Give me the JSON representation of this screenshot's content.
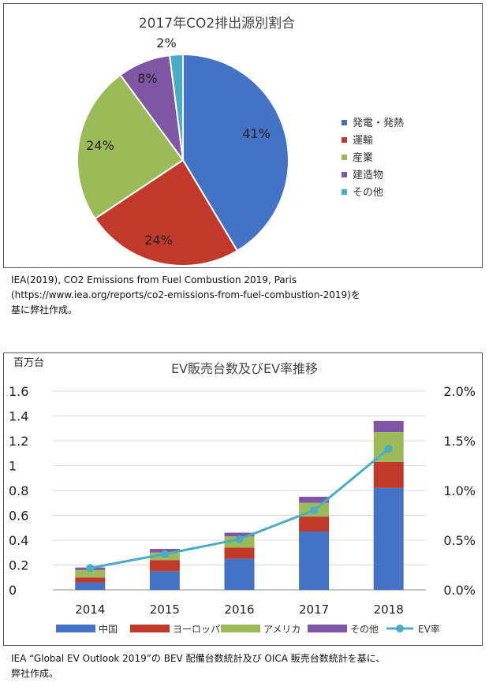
{
  "pie_caption": [
    "IEA(2019), CO2 Emissions from Fuel Combustion 2019, Paris",
    "(https://www.iea.org/reports/co2-emissions-from-fuel-combustion-2019)を",
    "基に弊社作成。"
  ],
  "bar_caption": [
    "IEA “Global EV Outlook 2019”の BEV 配備台数統計及び OICA 販売台数統計を基に、",
    "弊社作成。"
  ],
  "colors": {
    "blue": "#4472c4",
    "red": "#c0392b",
    "green": "#9bbb59",
    "purple": "#7f56a3",
    "teal": "#4bacc6"
  },
  "chart_data": [
    {
      "type": "pie",
      "title": "2017年CO2排出源別割合",
      "slices": [
        {
          "label": "発電・発熱",
          "value": 41,
          "display": "41%",
          "color": "#4472c4"
        },
        {
          "label": "運輸",
          "value": 24,
          "display": "24%",
          "color": "#c0392b"
        },
        {
          "label": "産業",
          "value": 24,
          "display": "24%",
          "color": "#9bbb59"
        },
        {
          "label": "建造物",
          "value": 8,
          "display": "8%",
          "color": "#7f56a3"
        },
        {
          "label": "その他",
          "value": 2,
          "display": "2%",
          "color": "#4bacc6"
        }
      ],
      "legend": "right"
    },
    {
      "type": "bar",
      "stacked": true,
      "title": "EV販売台数及びEV率推移",
      "ylabel": "百万台",
      "categories": [
        "2014",
        "2015",
        "2016",
        "2017",
        "2018"
      ],
      "ylim": [
        0,
        1.6
      ],
      "yticks": [
        "0",
        "0.2",
        "0.4",
        "0.6",
        "0.8",
        "1",
        "1.2",
        "1.4",
        "1.6"
      ],
      "y2lim": [
        0,
        2.0
      ],
      "y2ticks": [
        "0.0%",
        "0.5%",
        "1.0%",
        "1.5%",
        "2.0%"
      ],
      "series": [
        {
          "name": "中国",
          "color": "#4472c4",
          "values": [
            0.06,
            0.15,
            0.25,
            0.47,
            0.82
          ]
        },
        {
          "name": "ヨーロッパ",
          "color": "#c0392b",
          "values": [
            0.04,
            0.09,
            0.09,
            0.12,
            0.21
          ]
        },
        {
          "name": "アメリカ",
          "color": "#9bbb59",
          "values": [
            0.06,
            0.06,
            0.09,
            0.11,
            0.24
          ]
        },
        {
          "name": "その他",
          "color": "#7f56a3",
          "values": [
            0.02,
            0.03,
            0.03,
            0.05,
            0.09
          ]
        }
      ],
      "line": {
        "name": "EV率",
        "color": "#4bacc6",
        "axis": "right",
        "values": [
          0.22,
          0.36,
          0.51,
          0.8,
          1.42
        ]
      },
      "legend": "bottom"
    }
  ]
}
